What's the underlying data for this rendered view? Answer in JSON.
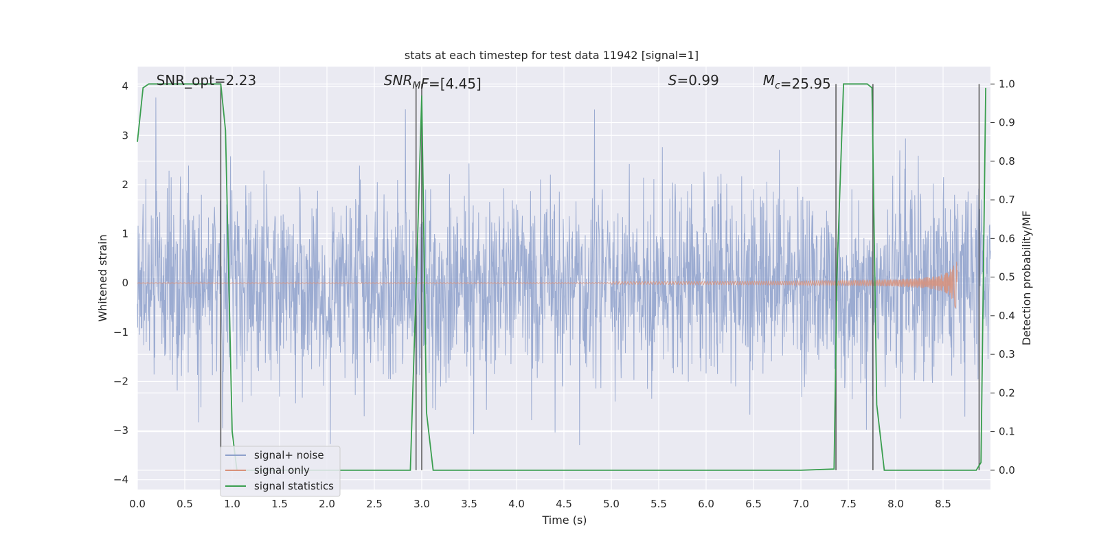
{
  "chart_data": {
    "type": "line",
    "title": "stats at each timestep for test data 11942 [signal=1]",
    "xlabel": "Time (s)",
    "ylabel": "Whitened strain",
    "ylabel_right": "Detection probability/MF",
    "xlim": [
      0.0,
      9.0
    ],
    "ylim": [
      -4.2,
      4.4
    ],
    "ylim_right": [
      -0.05,
      1.045
    ],
    "x_ticks": [
      "0.0",
      "0.5",
      "1.0",
      "1.5",
      "2.0",
      "2.5",
      "3.0",
      "3.5",
      "4.0",
      "4.5",
      "5.0",
      "5.5",
      "6.0",
      "6.5",
      "7.0",
      "7.5",
      "8.0",
      "8.5"
    ],
    "y_ticks": [
      "4",
      "3",
      "2",
      "1",
      "0",
      "−1",
      "−2",
      "−3",
      "−4"
    ],
    "y_ticks_right": [
      "1.0",
      "0.9",
      "0.8",
      "0.7",
      "0.6",
      "0.5",
      "0.4",
      "0.3",
      "0.2",
      "0.1",
      "0.0"
    ],
    "grid": true,
    "legend_position": "lower-left",
    "annotations": [
      {
        "id": "snr_opt",
        "label": "SNR_opt=2.23",
        "x": 0.2
      },
      {
        "id": "snr_mf",
        "label": "=[4.45]",
        "main": "SNR",
        "sub": "M",
        "tail": "F",
        "x": 2.6
      },
      {
        "id": "s_val",
        "label": "=0.99",
        "main": "S",
        "x": 5.6
      },
      {
        "id": "mc_val",
        "label": "=25.95",
        "main": "M",
        "sub": "c",
        "x": 6.6
      }
    ],
    "series": [
      {
        "name": "signal+ noise",
        "color": "#8da0cb",
        "description_values": {
          "noise_band_min": -3.8,
          "noise_band_max": 4.0
        }
      },
      {
        "name": "signal only",
        "color": "#d8917a",
        "chirp_peak_time": 8.65,
        "chirp_peak_amplitude": 0.5
      },
      {
        "name": "signal statistics",
        "color": "#3a9e4f",
        "axis": "right",
        "x": [
          0.0,
          0.06,
          0.12,
          0.2,
          0.4,
          0.6,
          0.8,
          0.88,
          0.93,
          1.0,
          1.05,
          1.5,
          2.0,
          2.5,
          2.88,
          2.95,
          3.0,
          3.05,
          3.12,
          3.5,
          4.0,
          5.0,
          6.0,
          7.0,
          7.35,
          7.38,
          7.45,
          7.5,
          7.7,
          7.75,
          7.8,
          7.88,
          8.0,
          8.5,
          8.85,
          8.9,
          8.95
        ],
        "values": [
          0.85,
          0.99,
          1.0,
          1.0,
          1.0,
          1.0,
          1.0,
          1.0,
          0.88,
          0.1,
          0.0,
          0.0,
          0.0,
          0.0,
          0.0,
          0.55,
          0.97,
          0.15,
          0.0,
          0.0,
          0.0,
          0.0,
          0.0,
          0.0,
          0.003,
          0.5,
          1.0,
          1.0,
          1.0,
          0.99,
          0.17,
          0.0,
          0.0,
          0.0,
          0.0,
          0.02,
          0.99
        ]
      }
    ],
    "vertical_lines_x": [
      0.88,
      2.94,
      3.0,
      7.37,
      7.76,
      8.88
    ]
  }
}
